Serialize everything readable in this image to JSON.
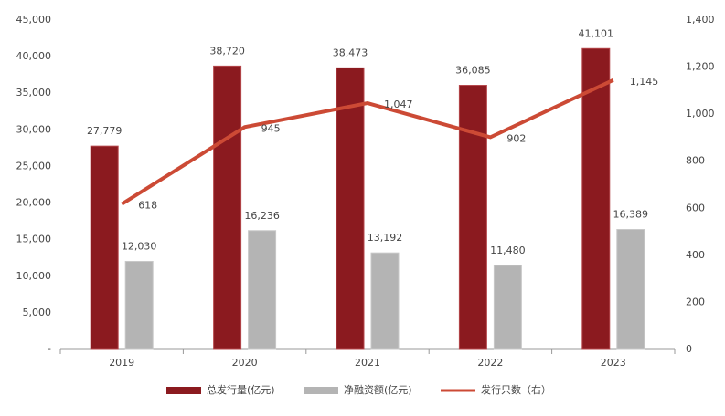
{
  "chart_data": {
    "type": "bar",
    "categories": [
      "2019",
      "2020",
      "2021",
      "2022",
      "2023"
    ],
    "series": [
      {
        "name": "总发行量(亿元)",
        "type": "bar",
        "color": "#8b1a1f",
        "values": [
          27779,
          38720,
          38473,
          36085,
          41101
        ],
        "value_labels": [
          "27,779",
          "38,720",
          "38,473",
          "36,085",
          "41,101"
        ]
      },
      {
        "name": "净融资额(亿元)",
        "type": "bar",
        "color": "#b4b4b4",
        "values": [
          12030,
          16236,
          13192,
          11480,
          16389
        ],
        "value_labels": [
          "12,030",
          "16,236",
          "13,192",
          "11,480",
          "16,389"
        ]
      },
      {
        "name": "发行只数（右）",
        "type": "line",
        "axis": "y2",
        "color": "#cc4a35",
        "values": [
          618,
          945,
          1047,
          902,
          1145
        ],
        "value_labels": [
          "618",
          "945",
          "1,047",
          "902",
          "1,145"
        ]
      }
    ],
    "ylim": [
      0,
      45000
    ],
    "yticks": [
      {
        "value": 0,
        "label": "-"
      },
      {
        "value": 5000,
        "label": "5,000"
      },
      {
        "value": 10000,
        "label": "10,000"
      },
      {
        "value": 15000,
        "label": "15,000"
      },
      {
        "value": 20000,
        "label": "20,000"
      },
      {
        "value": 25000,
        "label": "25,000"
      },
      {
        "value": 30000,
        "label": "30,000"
      },
      {
        "value": 35000,
        "label": "35,000"
      },
      {
        "value": 40000,
        "label": "40,000"
      },
      {
        "value": 45000,
        "label": "45,000"
      }
    ],
    "y2lim": [
      0,
      1400
    ],
    "y2ticks": [
      0,
      200,
      400,
      600,
      800,
      {
        "value": 1000,
        "label": "1,000"
      },
      {
        "value": 1200,
        "label": "1,200"
      },
      {
        "value": 1400,
        "label": "1,400"
      }
    ],
    "legend": "bottom"
  }
}
